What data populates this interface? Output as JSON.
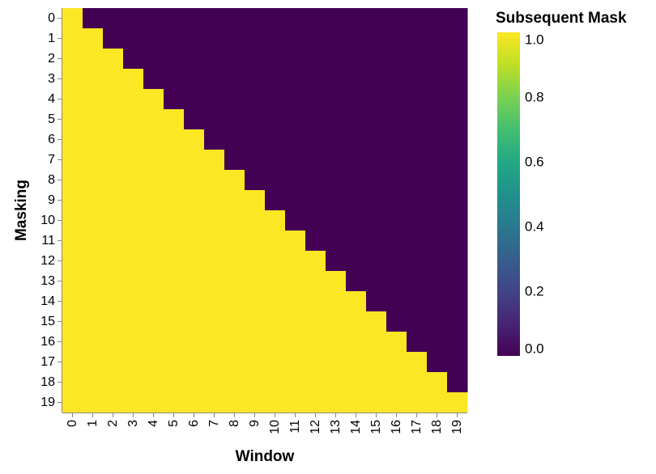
{
  "chart_data": {
    "type": "heatmap",
    "title": "",
    "xlabel": "Window",
    "ylabel": "Masking",
    "x_categories": [
      0,
      1,
      2,
      3,
      4,
      5,
      6,
      7,
      8,
      9,
      10,
      11,
      12,
      13,
      14,
      15,
      16,
      17,
      18,
      19
    ],
    "y_categories": [
      0,
      1,
      2,
      3,
      4,
      5,
      6,
      7,
      8,
      9,
      10,
      11,
      12,
      13,
      14,
      15,
      16,
      17,
      18,
      19
    ],
    "value_rule": "value = 1 when Window <= Masking, else 0",
    "values": [
      [
        1,
        0,
        0,
        0,
        0,
        0,
        0,
        0,
        0,
        0,
        0,
        0,
        0,
        0,
        0,
        0,
        0,
        0,
        0,
        0
      ],
      [
        1,
        1,
        0,
        0,
        0,
        0,
        0,
        0,
        0,
        0,
        0,
        0,
        0,
        0,
        0,
        0,
        0,
        0,
        0,
        0
      ],
      [
        1,
        1,
        1,
        0,
        0,
        0,
        0,
        0,
        0,
        0,
        0,
        0,
        0,
        0,
        0,
        0,
        0,
        0,
        0,
        0
      ],
      [
        1,
        1,
        1,
        1,
        0,
        0,
        0,
        0,
        0,
        0,
        0,
        0,
        0,
        0,
        0,
        0,
        0,
        0,
        0,
        0
      ],
      [
        1,
        1,
        1,
        1,
        1,
        0,
        0,
        0,
        0,
        0,
        0,
        0,
        0,
        0,
        0,
        0,
        0,
        0,
        0,
        0
      ],
      [
        1,
        1,
        1,
        1,
        1,
        1,
        0,
        0,
        0,
        0,
        0,
        0,
        0,
        0,
        0,
        0,
        0,
        0,
        0,
        0
      ],
      [
        1,
        1,
        1,
        1,
        1,
        1,
        1,
        0,
        0,
        0,
        0,
        0,
        0,
        0,
        0,
        0,
        0,
        0,
        0,
        0
      ],
      [
        1,
        1,
        1,
        1,
        1,
        1,
        1,
        1,
        0,
        0,
        0,
        0,
        0,
        0,
        0,
        0,
        0,
        0,
        0,
        0
      ],
      [
        1,
        1,
        1,
        1,
        1,
        1,
        1,
        1,
        1,
        0,
        0,
        0,
        0,
        0,
        0,
        0,
        0,
        0,
        0,
        0
      ],
      [
        1,
        1,
        1,
        1,
        1,
        1,
        1,
        1,
        1,
        1,
        0,
        0,
        0,
        0,
        0,
        0,
        0,
        0,
        0,
        0
      ],
      [
        1,
        1,
        1,
        1,
        1,
        1,
        1,
        1,
        1,
        1,
        1,
        0,
        0,
        0,
        0,
        0,
        0,
        0,
        0,
        0
      ],
      [
        1,
        1,
        1,
        1,
        1,
        1,
        1,
        1,
        1,
        1,
        1,
        1,
        0,
        0,
        0,
        0,
        0,
        0,
        0,
        0
      ],
      [
        1,
        1,
        1,
        1,
        1,
        1,
        1,
        1,
        1,
        1,
        1,
        1,
        1,
        0,
        0,
        0,
        0,
        0,
        0,
        0
      ],
      [
        1,
        1,
        1,
        1,
        1,
        1,
        1,
        1,
        1,
        1,
        1,
        1,
        1,
        1,
        0,
        0,
        0,
        0,
        0,
        0
      ],
      [
        1,
        1,
        1,
        1,
        1,
        1,
        1,
        1,
        1,
        1,
        1,
        1,
        1,
        1,
        1,
        0,
        0,
        0,
        0,
        0
      ],
      [
        1,
        1,
        1,
        1,
        1,
        1,
        1,
        1,
        1,
        1,
        1,
        1,
        1,
        1,
        1,
        1,
        0,
        0,
        0,
        0
      ],
      [
        1,
        1,
        1,
        1,
        1,
        1,
        1,
        1,
        1,
        1,
        1,
        1,
        1,
        1,
        1,
        1,
        1,
        0,
        0,
        0
      ],
      [
        1,
        1,
        1,
        1,
        1,
        1,
        1,
        1,
        1,
        1,
        1,
        1,
        1,
        1,
        1,
        1,
        1,
        1,
        0,
        0
      ],
      [
        1,
        1,
        1,
        1,
        1,
        1,
        1,
        1,
        1,
        1,
        1,
        1,
        1,
        1,
        1,
        1,
        1,
        1,
        1,
        0
      ],
      [
        1,
        1,
        1,
        1,
        1,
        1,
        1,
        1,
        1,
        1,
        1,
        1,
        1,
        1,
        1,
        1,
        1,
        1,
        1,
        1
      ]
    ],
    "color_scale": {
      "title": "Subsequent Mask",
      "scheme": "viridis",
      "domain": [
        0,
        1
      ],
      "ticks": [
        "0.0",
        "0.2",
        "0.4",
        "0.6",
        "0.8",
        "1.0"
      ],
      "low_color": "#440154",
      "high_color": "#fde725"
    },
    "legend_position": "right",
    "grid": false
  }
}
